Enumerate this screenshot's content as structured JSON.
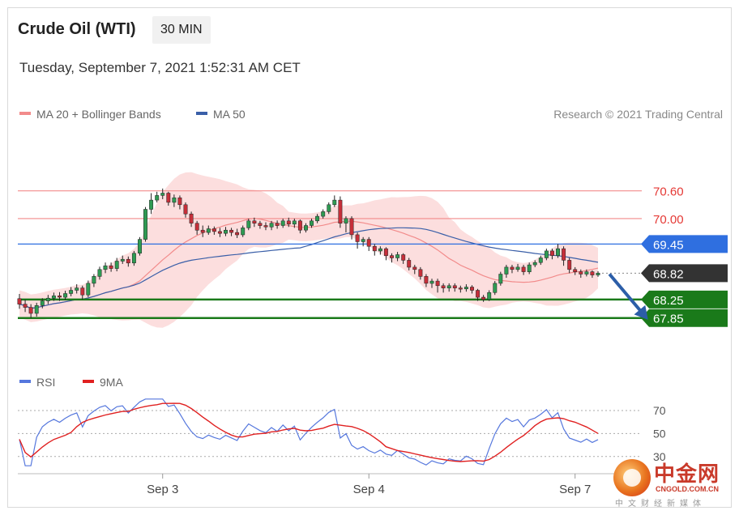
{
  "header": {
    "title": "Crude Oil (WTI)",
    "timeframe": "30 MIN",
    "datetime": "Tuesday, September 7, 2021 1:52:31 AM CET"
  },
  "legend": {
    "ma20": "MA 20 + Bollinger Bands",
    "ma50": "MA 50",
    "rsi": "RSI",
    "rsi_ma": "9MA",
    "credit": "Research © 2021 Trading Central"
  },
  "colors": {
    "ma20": "#f28b8b",
    "ma50": "#3a5fa8",
    "band": "#fbd3d3",
    "bull": "#2e9b53",
    "bear": "#c62f3a",
    "resistance": "#f28b8b",
    "pivot": "#2f6fe0",
    "support": "#1a7a1a",
    "current": "#333333",
    "rsi": "#5577dd",
    "rsi_ma": "#e02020"
  },
  "watermark": {
    "brand": "中金网",
    "url": "CNGOLD.COM.CN",
    "subtitle": "中文财经新媒体"
  },
  "chart_data": [
    {
      "type": "candlestick",
      "ylim": [
        66.9,
        71.75
      ],
      "xlabels": [
        {
          "label": "Sep 3",
          "index": 25
        },
        {
          "label": "Sep 4",
          "index": 61
        },
        {
          "label": "Sep 7",
          "index": 97
        }
      ],
      "levels": [
        {
          "value": 70.6,
          "label": "70.60",
          "kind": "resistance"
        },
        {
          "value": 70.0,
          "label": "70.00",
          "kind": "resistance"
        },
        {
          "value": 69.45,
          "label": "69.45",
          "kind": "pivot"
        },
        {
          "value": 68.82,
          "label": "68.82",
          "kind": "current"
        },
        {
          "value": 68.25,
          "label": "68.25",
          "kind": "support"
        },
        {
          "value": 67.85,
          "label": "67.85",
          "kind": "support"
        }
      ],
      "projection": {
        "from_index": 103,
        "from": 68.8,
        "to_index": 109,
        "to": 67.92
      },
      "candles": [
        [
          68.27,
          68.15,
          68.37,
          68.05
        ],
        [
          68.15,
          68.08,
          68.25,
          67.98
        ],
        [
          68.08,
          67.95,
          68.15,
          67.85
        ],
        [
          67.95,
          68.12,
          68.18,
          67.88
        ],
        [
          68.12,
          68.22,
          68.28,
          68.06
        ],
        [
          68.22,
          68.28,
          68.35,
          68.15
        ],
        [
          68.28,
          68.33,
          68.4,
          68.22
        ],
        [
          68.33,
          68.3,
          68.41,
          68.22
        ],
        [
          68.3,
          68.38,
          68.44,
          68.24
        ],
        [
          68.38,
          68.45,
          68.52,
          68.32
        ],
        [
          68.45,
          68.5,
          68.58,
          68.38
        ],
        [
          68.5,
          68.35,
          68.55,
          68.25
        ],
        [
          68.35,
          68.6,
          68.66,
          68.3
        ],
        [
          68.6,
          68.75,
          68.8,
          68.52
        ],
        [
          68.75,
          68.9,
          68.96,
          68.68
        ],
        [
          68.9,
          68.98,
          69.05,
          68.82
        ],
        [
          68.98,
          68.92,
          69.05,
          68.85
        ],
        [
          68.92,
          69.08,
          69.15,
          68.86
        ],
        [
          69.08,
          69.12,
          69.2,
          69.02
        ],
        [
          69.12,
          69.04,
          69.18,
          68.96
        ],
        [
          69.04,
          69.25,
          69.3,
          68.98
        ],
        [
          69.25,
          69.55,
          69.6,
          69.2
        ],
        [
          69.55,
          70.2,
          70.25,
          69.5
        ],
        [
          70.2,
          70.4,
          70.55,
          70.1
        ],
        [
          70.4,
          70.5,
          70.58,
          70.35
        ],
        [
          70.5,
          70.55,
          70.65,
          70.42
        ],
        [
          70.55,
          70.35,
          70.58,
          70.28
        ],
        [
          70.35,
          70.45,
          70.52,
          70.25
        ],
        [
          70.45,
          70.3,
          70.5,
          70.2
        ],
        [
          70.3,
          70.1,
          70.35,
          70.02
        ],
        [
          70.1,
          69.9,
          70.15,
          69.82
        ],
        [
          69.9,
          69.75,
          69.95,
          69.65
        ],
        [
          69.75,
          69.7,
          69.85,
          69.6
        ],
        [
          69.7,
          69.78,
          69.85,
          69.65
        ],
        [
          69.78,
          69.72,
          69.83,
          69.65
        ],
        [
          69.72,
          69.68,
          69.8,
          69.6
        ],
        [
          69.68,
          69.75,
          69.82,
          69.62
        ],
        [
          69.75,
          69.7,
          69.8,
          69.62
        ],
        [
          69.7,
          69.65,
          69.78,
          69.58
        ],
        [
          69.65,
          69.8,
          69.85,
          69.6
        ],
        [
          69.8,
          69.95,
          70.0,
          69.75
        ],
        [
          69.95,
          69.9,
          70.02,
          69.82
        ],
        [
          69.9,
          69.85,
          69.95,
          69.78
        ],
        [
          69.85,
          69.82,
          69.92,
          69.75
        ],
        [
          69.82,
          69.9,
          69.95,
          69.75
        ],
        [
          69.9,
          69.85,
          69.96,
          69.78
        ],
        [
          69.85,
          69.95,
          70.0,
          69.8
        ],
        [
          69.95,
          69.88,
          70.02,
          69.82
        ],
        [
          69.88,
          69.95,
          70.0,
          69.8
        ],
        [
          69.95,
          69.75,
          69.98,
          69.68
        ],
        [
          69.75,
          69.85,
          69.9,
          69.7
        ],
        [
          69.85,
          69.95,
          70.0,
          69.8
        ],
        [
          69.95,
          70.05,
          70.1,
          69.9
        ],
        [
          70.05,
          70.15,
          70.2,
          70.0
        ],
        [
          70.15,
          70.3,
          70.35,
          70.1
        ],
        [
          70.3,
          70.4,
          70.5,
          70.25
        ],
        [
          70.4,
          69.9,
          70.48,
          69.8
        ],
        [
          69.9,
          70.0,
          70.05,
          69.7
        ],
        [
          70.0,
          69.65,
          70.05,
          69.55
        ],
        [
          69.65,
          69.5,
          69.7,
          69.35
        ],
        [
          69.5,
          69.55,
          69.6,
          69.4
        ],
        [
          69.55,
          69.4,
          69.6,
          69.3
        ],
        [
          69.4,
          69.3,
          69.45,
          69.2
        ],
        [
          69.3,
          69.35,
          69.4,
          69.22
        ],
        [
          69.35,
          69.2,
          69.38,
          69.1
        ],
        [
          69.2,
          69.15,
          69.25,
          69.05
        ],
        [
          69.15,
          69.22,
          69.28,
          69.08
        ],
        [
          69.22,
          69.1,
          69.25,
          69.02
        ],
        [
          69.1,
          68.95,
          69.15,
          68.88
        ],
        [
          68.95,
          68.9,
          69.0,
          68.8
        ],
        [
          68.9,
          68.75,
          68.95,
          68.68
        ],
        [
          68.75,
          68.6,
          68.8,
          68.52
        ],
        [
          68.6,
          68.65,
          68.7,
          68.5
        ],
        [
          68.65,
          68.55,
          68.7,
          68.4
        ],
        [
          68.55,
          68.5,
          68.6,
          68.4
        ],
        [
          68.5,
          68.55,
          68.6,
          68.42
        ],
        [
          68.55,
          68.5,
          68.6,
          68.42
        ],
        [
          68.5,
          68.48,
          68.55,
          68.4
        ],
        [
          68.48,
          68.52,
          68.58,
          68.42
        ],
        [
          68.52,
          68.45,
          68.56,
          68.38
        ],
        [
          68.45,
          68.3,
          68.48,
          68.22
        ],
        [
          68.3,
          68.25,
          68.35,
          68.2
        ],
        [
          68.25,
          68.4,
          68.45,
          68.22
        ],
        [
          68.4,
          68.6,
          68.65,
          68.35
        ],
        [
          68.6,
          68.8,
          68.85,
          68.55
        ],
        [
          68.8,
          68.95,
          69.0,
          68.72
        ],
        [
          68.95,
          68.9,
          69.0,
          68.82
        ],
        [
          68.9,
          68.95,
          69.02,
          68.85
        ],
        [
          68.95,
          68.85,
          69.0,
          68.78
        ],
        [
          68.85,
          69.0,
          69.05,
          68.8
        ],
        [
          69.0,
          69.05,
          69.1,
          68.95
        ],
        [
          69.05,
          69.15,
          69.2,
          69.0
        ],
        [
          69.15,
          69.3,
          69.35,
          69.1
        ],
        [
          69.3,
          69.2,
          69.35,
          69.12
        ],
        [
          69.2,
          69.35,
          69.45,
          69.15
        ],
        [
          69.35,
          69.1,
          69.4,
          68.98
        ],
        [
          69.1,
          68.9,
          69.15,
          68.82
        ],
        [
          68.9,
          68.85,
          68.95,
          68.78
        ],
        [
          68.85,
          68.8,
          68.9,
          68.72
        ],
        [
          68.8,
          68.85,
          68.9,
          68.75
        ],
        [
          68.85,
          68.78,
          68.88,
          68.72
        ],
        [
          68.78,
          68.82,
          68.86,
          68.74
        ]
      ]
    },
    {
      "type": "line",
      "name": "RSI",
      "ylim": [
        20,
        82
      ],
      "y_ticks": [
        {
          "value": 70,
          "label": "70"
        },
        {
          "value": 50,
          "label": "50"
        },
        {
          "value": 30,
          "label": "30"
        }
      ]
    }
  ]
}
